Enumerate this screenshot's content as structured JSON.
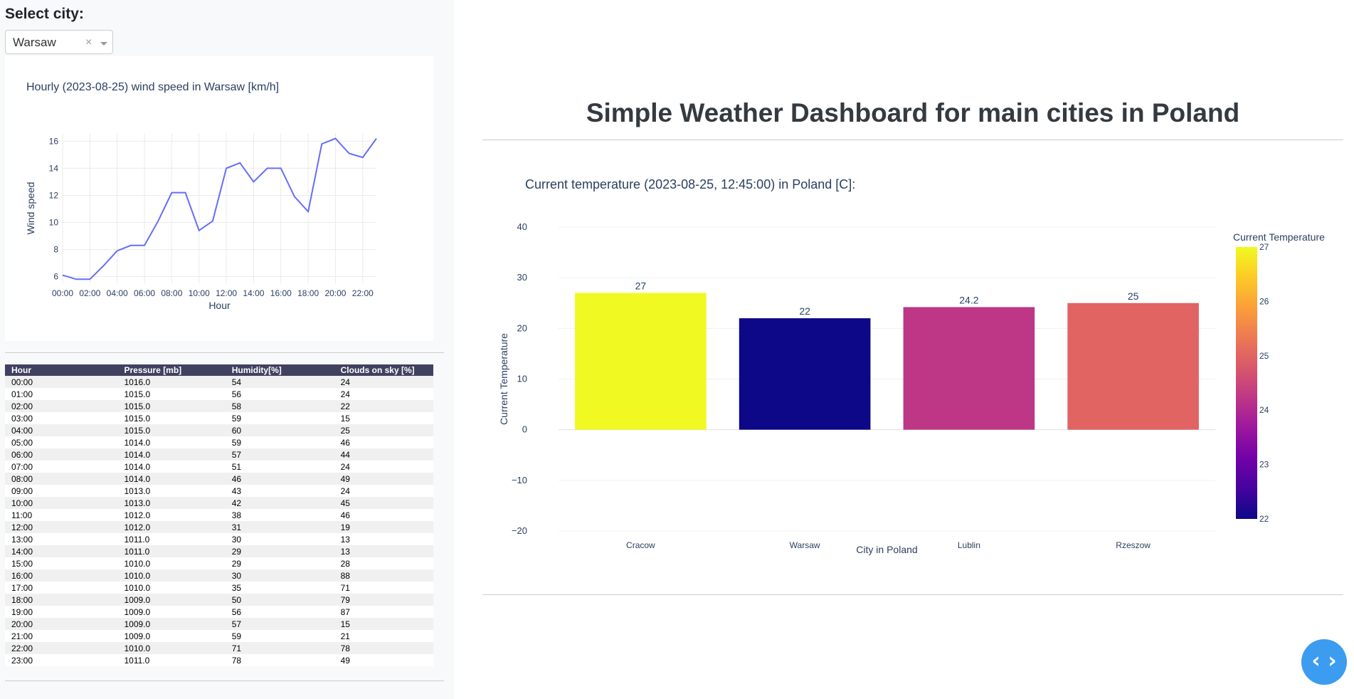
{
  "sidebar": {
    "select_label": "Select city:",
    "dropdown": {
      "value": "Warsaw",
      "clear": "×"
    }
  },
  "wind_chart": {
    "chart_data": {
      "type": "line",
      "title": "Hourly (2023-08-25) wind speed in Warsaw [km/h]",
      "xlabel": "Hour",
      "ylabel": "Wind speed",
      "x": [
        "00:00",
        "01:00",
        "02:00",
        "03:00",
        "04:00",
        "05:00",
        "06:00",
        "07:00",
        "08:00",
        "09:00",
        "10:00",
        "11:00",
        "12:00",
        "13:00",
        "14:00",
        "15:00",
        "16:00",
        "17:00",
        "18:00",
        "19:00",
        "20:00",
        "21:00",
        "22:00",
        "23:00"
      ],
      "values": [
        6.1,
        5.8,
        5.8,
        6.8,
        7.9,
        8.3,
        8.3,
        10.1,
        12.2,
        12.2,
        9.4,
        10.1,
        14.0,
        14.4,
        13.0,
        14.0,
        14.0,
        11.9,
        10.8,
        15.8,
        16.2,
        15.1,
        14.8,
        16.2
      ],
      "xticks": [
        "00:00",
        "02:00",
        "04:00",
        "06:00",
        "08:00",
        "10:00",
        "12:00",
        "14:00",
        "16:00",
        "18:00",
        "20:00",
        "22:00"
      ],
      "yticks": [
        6,
        8,
        10,
        12,
        14,
        16
      ],
      "ylim": [
        5.5,
        16.6
      ],
      "grid": true,
      "color": "#636efa"
    }
  },
  "table": {
    "headers": [
      "Hour",
      "Pressure [mb]",
      "Humidity[%]",
      "Clouds on sky [%]"
    ],
    "rows": [
      [
        "00:00",
        "1016.0",
        "54",
        "24"
      ],
      [
        "01:00",
        "1015.0",
        "56",
        "24"
      ],
      [
        "02:00",
        "1015.0",
        "58",
        "22"
      ],
      [
        "03:00",
        "1015.0",
        "59",
        "15"
      ],
      [
        "04:00",
        "1015.0",
        "60",
        "25"
      ],
      [
        "05:00",
        "1014.0",
        "59",
        "46"
      ],
      [
        "06:00",
        "1014.0",
        "57",
        "44"
      ],
      [
        "07:00",
        "1014.0",
        "51",
        "24"
      ],
      [
        "08:00",
        "1014.0",
        "46",
        "49"
      ],
      [
        "09:00",
        "1013.0",
        "43",
        "24"
      ],
      [
        "10:00",
        "1013.0",
        "42",
        "45"
      ],
      [
        "11:00",
        "1012.0",
        "38",
        "46"
      ],
      [
        "12:00",
        "1012.0",
        "31",
        "19"
      ],
      [
        "13:00",
        "1011.0",
        "30",
        "13"
      ],
      [
        "14:00",
        "1011.0",
        "29",
        "13"
      ],
      [
        "15:00",
        "1010.0",
        "29",
        "28"
      ],
      [
        "16:00",
        "1010.0",
        "30",
        "88"
      ],
      [
        "17:00",
        "1010.0",
        "35",
        "71"
      ],
      [
        "18:00",
        "1009.0",
        "50",
        "79"
      ],
      [
        "19:00",
        "1009.0",
        "56",
        "87"
      ],
      [
        "20:00",
        "1009.0",
        "57",
        "15"
      ],
      [
        "21:00",
        "1009.0",
        "59",
        "21"
      ],
      [
        "22:00",
        "1010.0",
        "71",
        "78"
      ],
      [
        "23:00",
        "1011.0",
        "78",
        "49"
      ]
    ]
  },
  "dashboard": {
    "title": "Simple Weather Dashboard for main cities in Poland"
  },
  "temp_chart": {
    "chart_data": {
      "type": "bar",
      "title": "Current temperature (2023-08-25, 12:45:00) in Poland [C]:",
      "xlabel": "City in Poland",
      "ylabel": "Current Temperature",
      "categories": [
        "Cracow",
        "Warsaw",
        "Lublin",
        "Rzeszow"
      ],
      "values": [
        27,
        22,
        24.2,
        25
      ],
      "data_labels": [
        "27",
        "22",
        "24.2",
        "25"
      ],
      "colors": [
        "#f0f921",
        "#0d0887",
        "#bd3786",
        "#e16462"
      ],
      "yticks": [
        -20,
        -10,
        0,
        10,
        20,
        30,
        40
      ],
      "ylim": [
        -20,
        40
      ],
      "grid": true,
      "colorbar": {
        "title": "Current Temperature",
        "range": [
          22,
          27
        ],
        "ticks": [
          22,
          23,
          24,
          25,
          26,
          27
        ],
        "colorscale": [
          "#0d0887",
          "#46039f",
          "#7201a8",
          "#9c179e",
          "#bd3786",
          "#d8576b",
          "#ed7953",
          "#fb9f3a",
          "#fdca26",
          "#f0f921"
        ]
      }
    }
  },
  "code_button": {
    "label": "‹ ›"
  }
}
